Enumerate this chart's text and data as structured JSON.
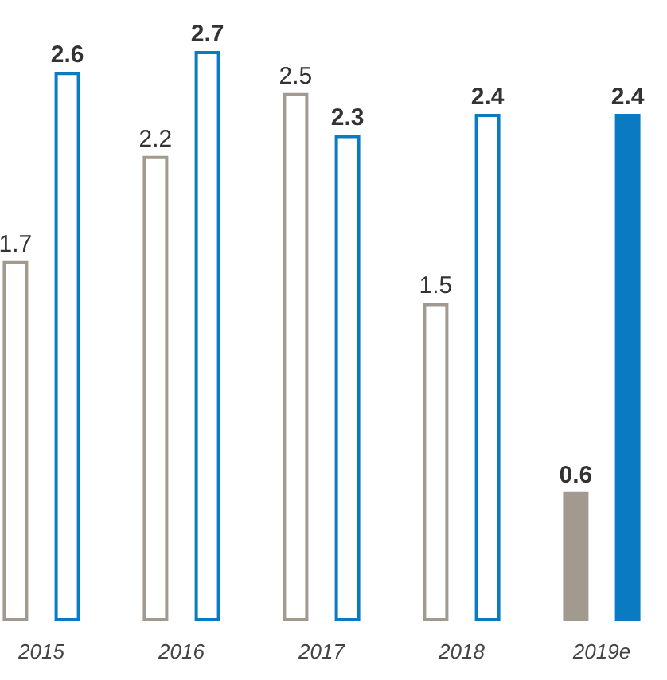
{
  "chart_data": {
    "type": "bar",
    "categories": [
      "2015",
      "2016",
      "2017",
      "2018",
      "2019e"
    ],
    "series": [
      {
        "color": "#a39a8f",
        "values": [
          1.7,
          2.2,
          2.5,
          1.5,
          0.6
        ]
      },
      {
        "color": "#0a7bc2",
        "values": [
          2.6,
          2.7,
          2.3,
          2.4,
          2.4
        ]
      }
    ],
    "ylim": [
      0,
      2.7
    ],
    "data_labels": true,
    "tick_labels": "x"
  }
}
